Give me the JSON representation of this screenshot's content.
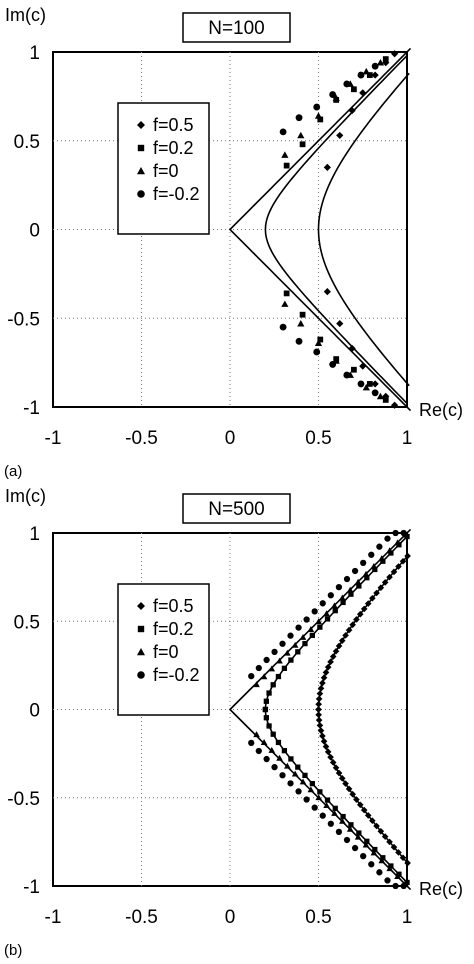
{
  "chart_data": [
    {
      "type": "scatter",
      "panel_label": "(a)",
      "title": "N=100",
      "xlabel": "Re(c)",
      "ylabel": "Im(c)",
      "xlim": [
        -1,
        1
      ],
      "ylim": [
        -1,
        1
      ],
      "x_ticks": [
        "-1",
        "-0.5",
        "0",
        "0.5",
        "1"
      ],
      "y_ticks": [
        "1",
        "0.5",
        "0",
        "-0.5",
        "-1"
      ],
      "grid": true,
      "legend_position": "upper-left",
      "series": [
        {
          "name": "f=0.5",
          "marker": "diamond",
          "points": [
            [
              0.55,
              0.35
            ],
            [
              0.62,
              0.53
            ],
            [
              0.69,
              0.67
            ],
            [
              0.75,
              0.77
            ],
            [
              0.82,
              0.87
            ],
            [
              0.88,
              0.94
            ],
            [
              0.93,
              0.99
            ],
            [
              0.55,
              -0.35
            ],
            [
              0.62,
              -0.53
            ],
            [
              0.69,
              -0.67
            ],
            [
              0.75,
              -0.77
            ],
            [
              0.82,
              -0.87
            ],
            [
              0.88,
              -0.94
            ],
            [
              0.93,
              -0.99
            ]
          ]
        },
        {
          "name": "f=0.2",
          "marker": "square",
          "points": [
            [
              0.32,
              0.36
            ],
            [
              0.41,
              0.48
            ],
            [
              0.51,
              0.62
            ],
            [
              0.6,
              0.73
            ],
            [
              0.7,
              0.79
            ],
            [
              0.79,
              0.87
            ],
            [
              0.88,
              0.96
            ],
            [
              0.32,
              -0.36
            ],
            [
              0.41,
              -0.48
            ],
            [
              0.51,
              -0.62
            ],
            [
              0.6,
              -0.73
            ],
            [
              0.7,
              -0.79
            ],
            [
              0.79,
              -0.87
            ],
            [
              0.88,
              -0.96
            ]
          ]
        },
        {
          "name": "f=0",
          "marker": "triangle",
          "points": [
            [
              0.31,
              0.42
            ],
            [
              0.4,
              0.53
            ],
            [
              0.5,
              0.64
            ],
            [
              0.6,
              0.74
            ],
            [
              0.68,
              0.82
            ],
            [
              0.77,
              0.89
            ],
            [
              0.85,
              0.94
            ],
            [
              0.31,
              -0.42
            ],
            [
              0.4,
              -0.53
            ],
            [
              0.5,
              -0.64
            ],
            [
              0.6,
              -0.74
            ],
            [
              0.68,
              -0.82
            ],
            [
              0.77,
              -0.89
            ],
            [
              0.85,
              -0.94
            ]
          ]
        },
        {
          "name": "f=-0.2",
          "marker": "circle",
          "points": [
            [
              0.3,
              0.55
            ],
            [
              0.39,
              0.63
            ],
            [
              0.49,
              0.69
            ],
            [
              0.58,
              0.76
            ],
            [
              0.66,
              0.82
            ],
            [
              0.74,
              0.87
            ],
            [
              0.82,
              0.92
            ],
            [
              0.3,
              -0.55
            ],
            [
              0.39,
              -0.63
            ],
            [
              0.49,
              -0.69
            ],
            [
              0.58,
              -0.76
            ],
            [
              0.66,
              -0.82
            ],
            [
              0.74,
              -0.87
            ],
            [
              0.82,
              -0.92
            ]
          ]
        }
      ]
    },
    {
      "type": "scatter",
      "panel_label": "(b)",
      "title": "N=500",
      "xlabel": "Re(c)",
      "ylabel": "Im(c)",
      "xlim": [
        -1,
        1
      ],
      "ylim": [
        -1,
        1
      ],
      "x_ticks": [
        "-1",
        "-0.5",
        "0",
        "0.5",
        "1"
      ],
      "y_ticks": [
        "1",
        "0.5",
        "0",
        "-0.5",
        "-1"
      ],
      "grid": true,
      "legend_position": "upper-left",
      "series": [
        {
          "name": "f=0.5",
          "marker": "diamond",
          "dense_curve": {
            "a": 0.5,
            "ymax": 0.87,
            "n": 30
          }
        },
        {
          "name": "f=0.2",
          "marker": "square",
          "dense_curve": {
            "a": 0.2,
            "ymax": 0.98,
            "n": 22
          }
        },
        {
          "name": "f=0",
          "marker": "triangle",
          "dense_curve": {
            "a": 0.05,
            "x_from": 0.15,
            "ymax": 0.99,
            "n": 20
          }
        },
        {
          "name": "f=-0.2",
          "marker": "circle",
          "dense_curve": {
            "a": 0.05,
            "x_from": 0.12,
            "ymax": 0.98,
            "n": 20,
            "yoffset": 0.08
          }
        }
      ]
    }
  ]
}
